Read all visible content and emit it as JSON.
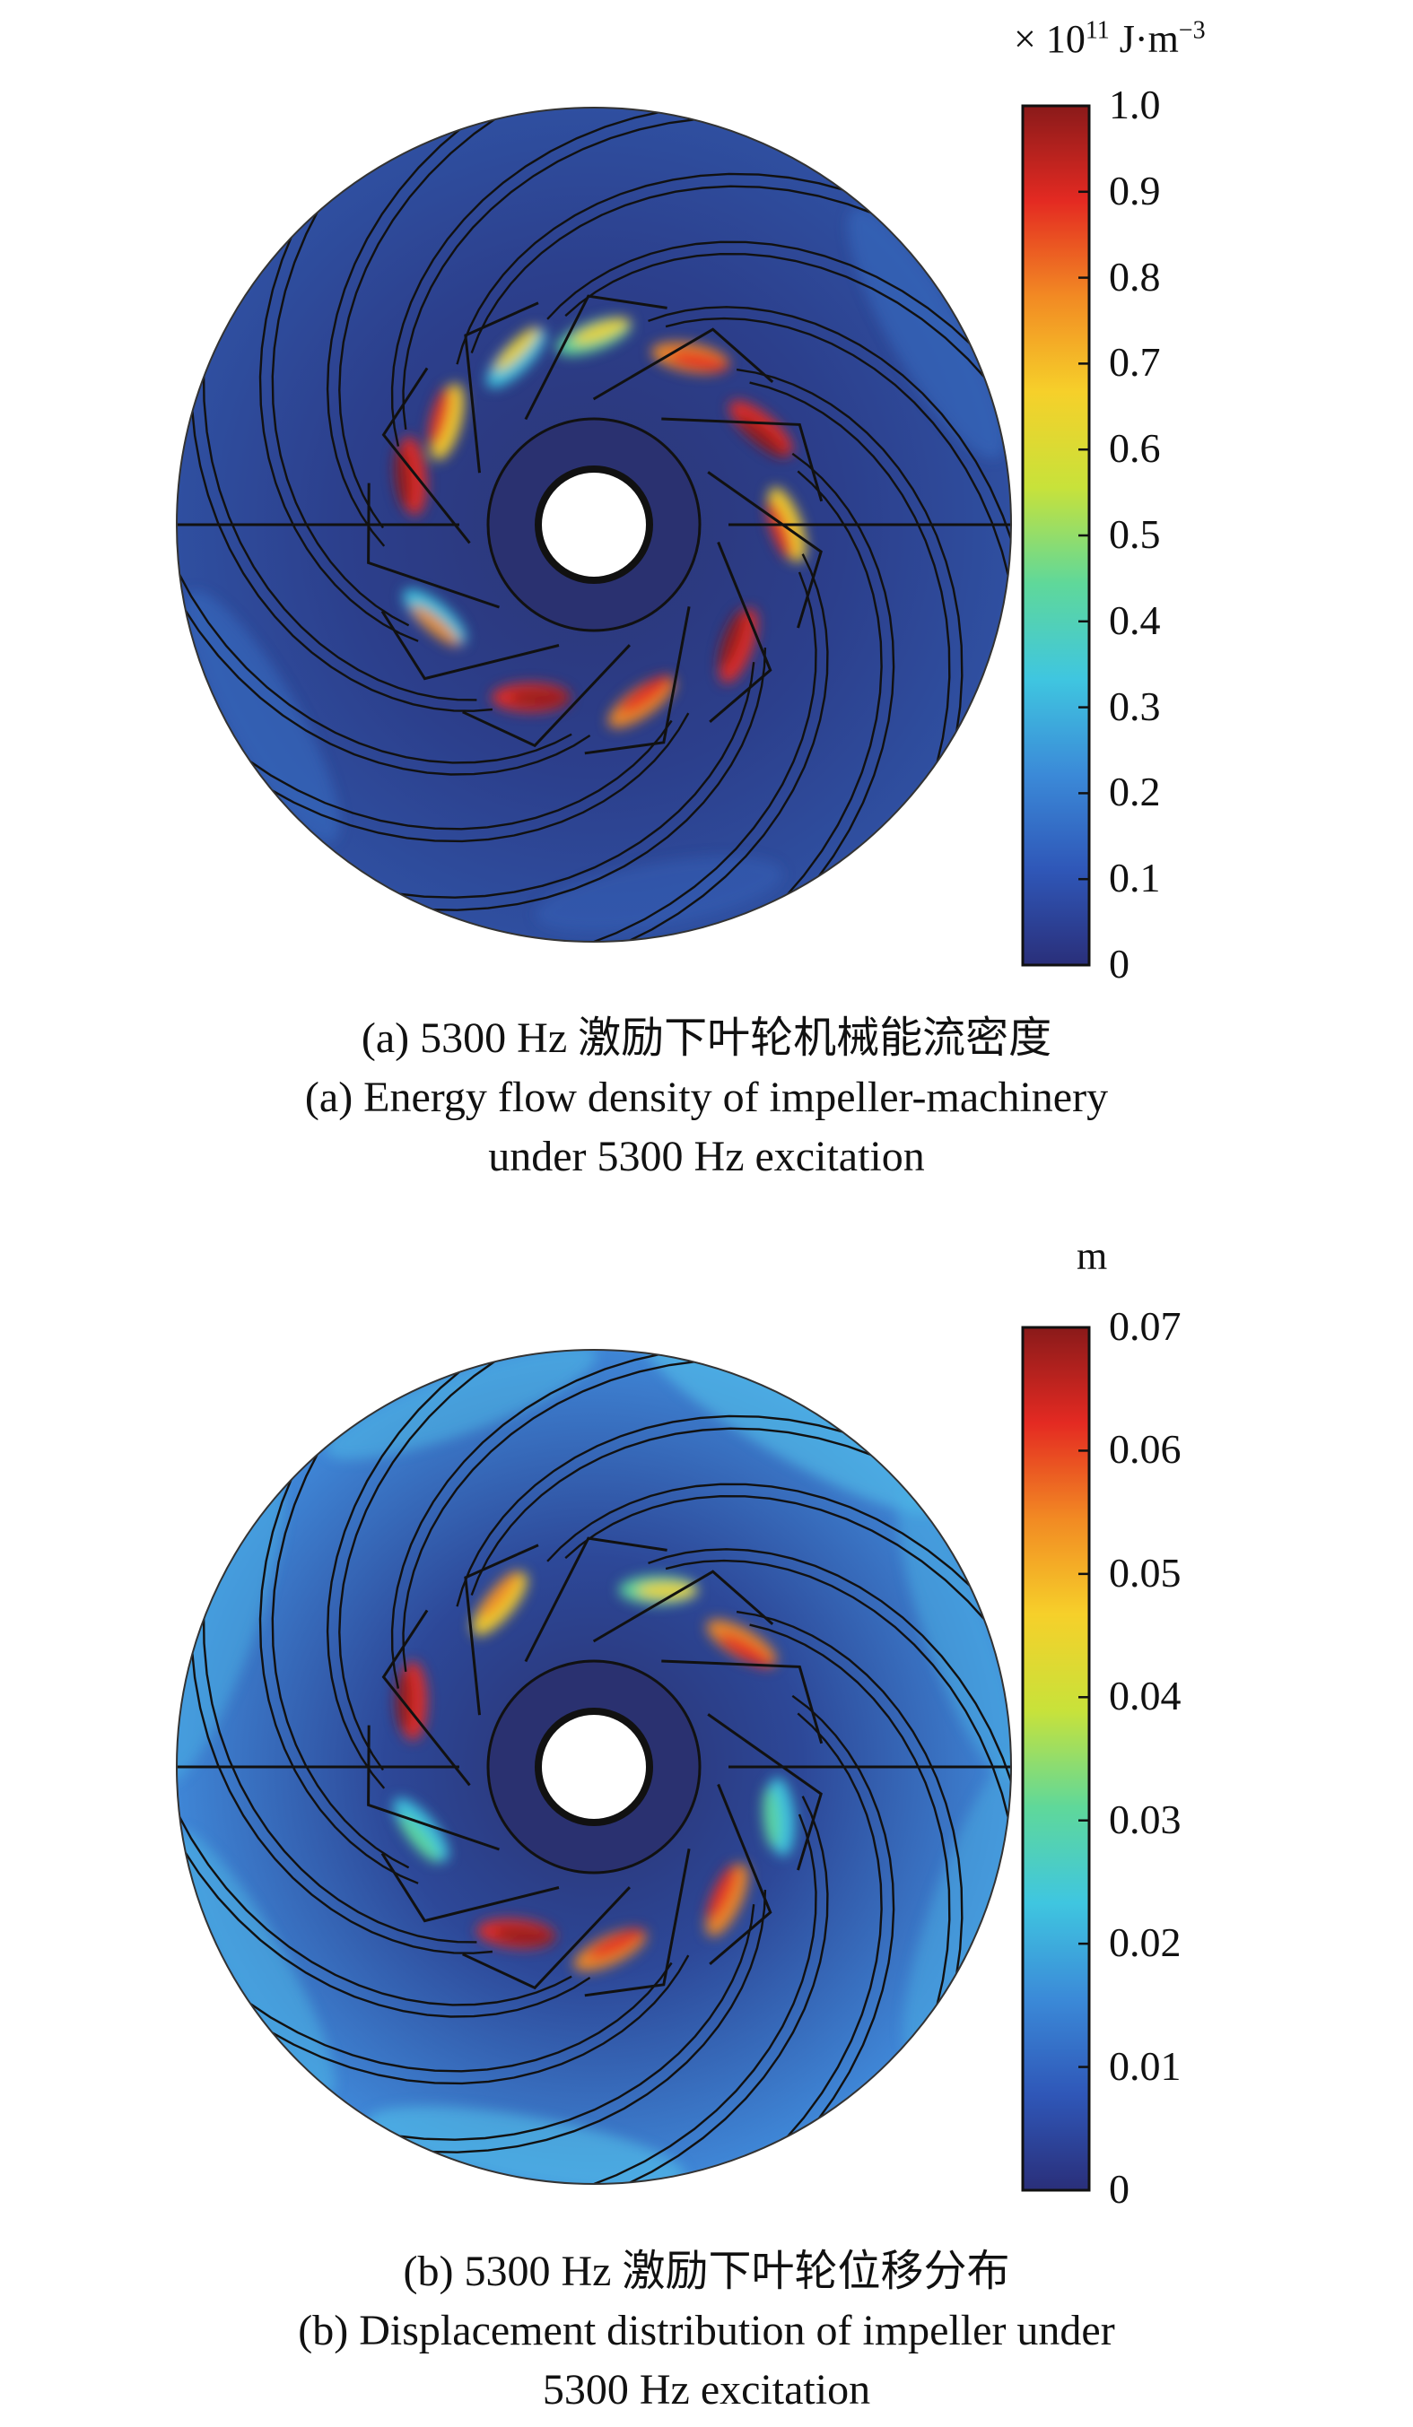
{
  "figures": [
    {
      "id": "a",
      "unit_prefix": "× 10",
      "unit_exponent": "11",
      "unit_suffix": " J·m",
      "unit_suffix_exponent": "−3",
      "colorbar_ticks": [
        "1.0",
        "0.9",
        "0.8",
        "0.7",
        "0.6",
        "0.5",
        "0.4",
        "0.3",
        "0.2",
        "0.1",
        "0"
      ],
      "caption_zh": "(a) 5300 Hz 激励下叶轮机械能流密度",
      "caption_en_1": "(a) Energy flow density of impeller-machinery",
      "caption_en_2": "under 5300 Hz excitation"
    },
    {
      "id": "b",
      "unit": "m",
      "colorbar_ticks": [
        "0.07",
        "0.06",
        "0.05",
        "0.04",
        "0.03",
        "0.02",
        "0.01",
        "0"
      ],
      "caption_zh": "(b) 5300 Hz 激励下叶轮位移分布",
      "caption_en_1": "(b) Displacement distribution of impeller under",
      "caption_en_2": "5300 Hz excitation"
    }
  ],
  "colormap": [
    "#2a2f7a",
    "#2f57b8",
    "#3b8ad8",
    "#3fc6e0",
    "#5fd89a",
    "#c8e23a",
    "#f6d02a",
    "#f28a23",
    "#e42a22",
    "#8a1a1a"
  ],
  "colors": {
    "disk_base_a": "#2b3c85",
    "disk_base_b": "#2c4796",
    "hub": "#2a3170",
    "line": "#111111"
  }
}
